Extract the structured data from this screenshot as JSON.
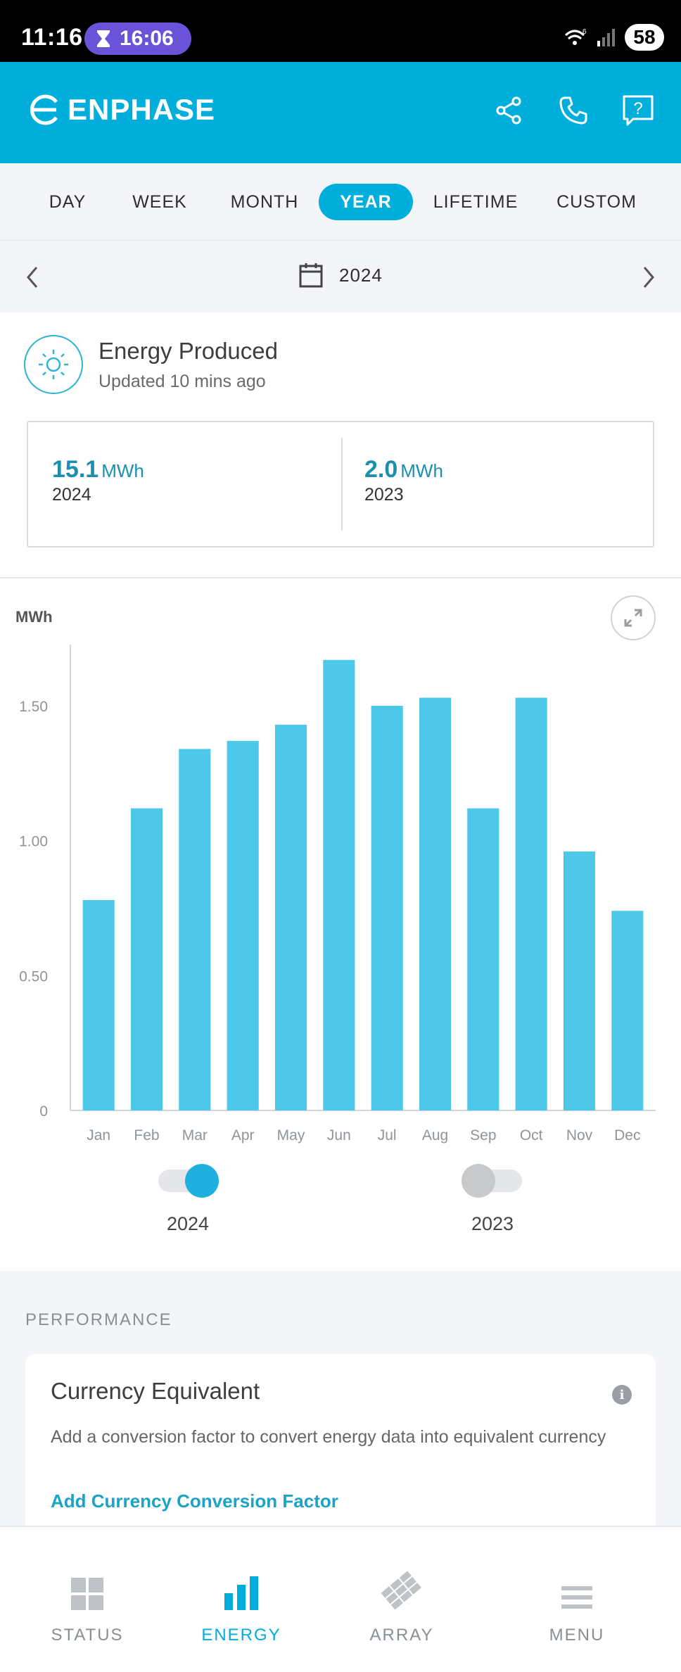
{
  "status_bar": {
    "time": "11:16",
    "timer": "16:06",
    "battery": "58",
    "signal_label": "6"
  },
  "header": {
    "brand": "ENPHASE",
    "icons": [
      "share-icon",
      "phone-icon",
      "help-icon"
    ],
    "help_glyph": "?"
  },
  "tabs": {
    "items": [
      {
        "label": "DAY"
      },
      {
        "label": "WEEK"
      },
      {
        "label": "MONTH"
      },
      {
        "label": "YEAR"
      },
      {
        "label": "LIFETIME"
      },
      {
        "label": "CUSTOM"
      }
    ],
    "selected": "YEAR"
  },
  "date_nav": {
    "year": "2024"
  },
  "energy_produced": {
    "title": "Energy Produced",
    "updated": "Updated 10 mins ago",
    "current": {
      "value": "15.1",
      "unit": "MWh",
      "year": "2024"
    },
    "previous": {
      "value": "2.0",
      "unit": "MWh",
      "year": "2023"
    }
  },
  "chart_data": {
    "type": "bar",
    "ylabel": "MWh",
    "categories": [
      "Jan",
      "Feb",
      "Mar",
      "Apr",
      "May",
      "Jun",
      "Jul",
      "Aug",
      "Sep",
      "Oct",
      "Nov",
      "Dec"
    ],
    "series": [
      {
        "name": "2024",
        "values": [
          0.78,
          1.12,
          1.34,
          1.37,
          1.43,
          1.67,
          1.5,
          1.53,
          1.12,
          1.53,
          0.96,
          0.74
        ]
      }
    ],
    "yticks": [
      "0",
      "0.50",
      "1.00",
      "1.50"
    ],
    "ytick_values": [
      0,
      0.5,
      1.0,
      1.5
    ],
    "ylim": [
      0,
      1.68
    ],
    "color": "#4dc8e8"
  },
  "legend_toggles": [
    {
      "label": "2024",
      "on": true,
      "color": "#1fb0de"
    },
    {
      "label": "2023",
      "on": false,
      "color": "#c8c9cb"
    }
  ],
  "performance": {
    "heading": "PERFORMANCE",
    "card_title": "Currency Equivalent",
    "info_glyph": "i",
    "description": "Add a conversion factor to convert energy data into equivalent currency",
    "link": "Add Currency Conversion Factor"
  },
  "bottom_nav": {
    "items": [
      {
        "label": "STATUS",
        "icon": "status-grid-icon"
      },
      {
        "label": "ENERGY",
        "icon": "energy-bars-icon"
      },
      {
        "label": "ARRAY",
        "icon": "array-panels-icon"
      },
      {
        "label": "MENU",
        "icon": "menu-lines-icon"
      }
    ],
    "selected": "ENERGY"
  }
}
